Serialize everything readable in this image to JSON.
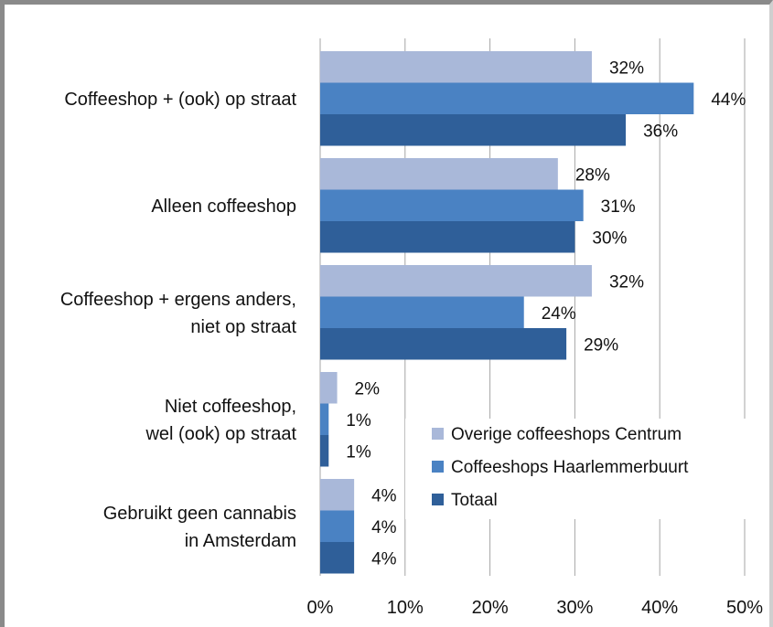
{
  "chart_data": {
    "type": "bar",
    "orientation": "horizontal",
    "categories": [
      [
        "Coffeeshop + (ook) op straat"
      ],
      [
        "Alleen coffeeshop"
      ],
      [
        "Coffeeshop + ergens anders,",
        "niet op straat"
      ],
      [
        "Niet coffeeshop,",
        "wel (ook) op straat"
      ],
      [
        "Gebruikt geen cannabis",
        "in Amsterdam"
      ]
    ],
    "series": [
      {
        "name": "Overige coffeeshops Centrum",
        "color": "#a9b8d9",
        "values": [
          32,
          28,
          32,
          2,
          4
        ],
        "labels": [
          "32%",
          "28%",
          "32%",
          "2%",
          "4%"
        ]
      },
      {
        "name": "Coffeeshops Haarlemmerbuurt",
        "color": "#4a82c3",
        "values": [
          44,
          31,
          24,
          1,
          4
        ],
        "labels": [
          "44%",
          "31%",
          "24%",
          "1%",
          "4%"
        ]
      },
      {
        "name": "Totaal",
        "color": "#2f5f99",
        "values": [
          36,
          30,
          29,
          1,
          4
        ],
        "labels": [
          "36%",
          "30%",
          "29%",
          "1%",
          "4%"
        ]
      }
    ],
    "x_ticks": [
      0,
      10,
      20,
      30,
      40,
      50
    ],
    "x_tick_labels": [
      "0%",
      "10%",
      "20%",
      "30%",
      "40%",
      "50%"
    ],
    "xlim": [
      0,
      50
    ],
    "grid": "vertical",
    "legend_position": "bottom-right",
    "title": "",
    "xlabel": "",
    "ylabel": ""
  }
}
